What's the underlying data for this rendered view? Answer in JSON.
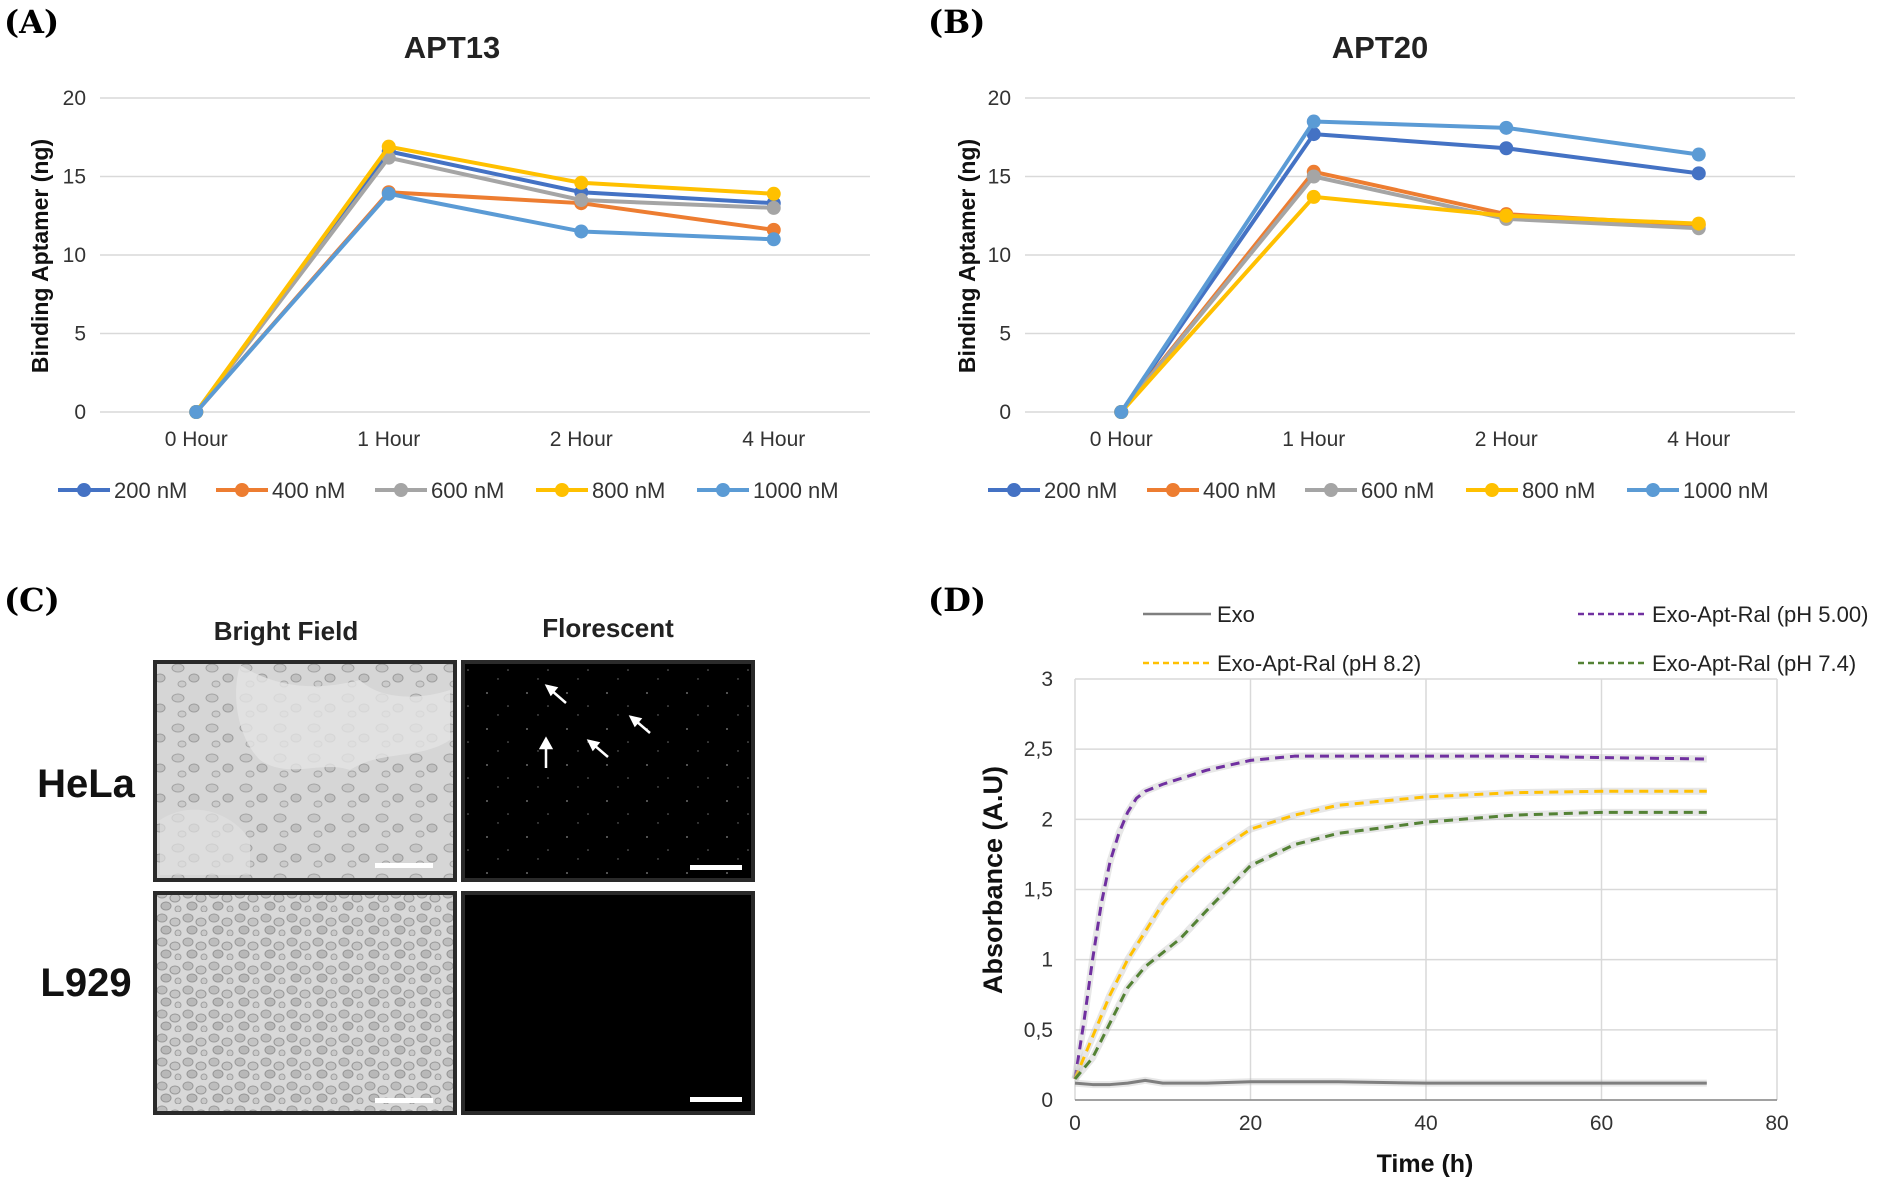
{
  "panel_labels": {
    "a": "(A)",
    "b": "(B)",
    "c": "(C)",
    "d": "(D)"
  },
  "colors": {
    "200 nM": "#4472c4",
    "400 nM": "#ed7d31",
    "600 nM": "#a5a5a5",
    "800 nM": "#ffc000",
    "1000 nM": "#5b9bd5",
    "exo": "#7f7f7f",
    "ph5": "#7030a0",
    "ph82": "#ffc000",
    "ph74": "#548235"
  },
  "chart_data": [
    {
      "id": "a",
      "type": "line",
      "title": "APT13",
      "xlabel": "",
      "ylabel": "Binding Aptamer (ng)",
      "categories": [
        "0 Hour",
        "1 Hour",
        "2 Hour",
        "4 Hour"
      ],
      "ylim": [
        0,
        20
      ],
      "yticks": [
        0,
        5,
        10,
        15,
        20
      ],
      "grid": true,
      "legend": "bottom",
      "series": [
        {
          "name": "200 nM",
          "values": [
            0,
            16.6,
            14.0,
            13.3
          ]
        },
        {
          "name": "400 nM",
          "values": [
            0,
            14.0,
            13.3,
            11.6
          ]
        },
        {
          "name": "600 nM",
          "values": [
            0,
            16.2,
            13.5,
            13.0
          ]
        },
        {
          "name": "800 nM",
          "values": [
            0,
            16.9,
            14.6,
            13.9
          ]
        },
        {
          "name": "1000 nM",
          "values": [
            0,
            13.9,
            11.5,
            11.0
          ]
        }
      ]
    },
    {
      "id": "b",
      "type": "line",
      "title": "APT20",
      "xlabel": "",
      "ylabel": "Binding Aptamer (ng)",
      "categories": [
        "0 Hour",
        "1 Hour",
        "2 Hour",
        "4 Hour"
      ],
      "ylim": [
        0,
        20
      ],
      "yticks": [
        0,
        5,
        10,
        15,
        20
      ],
      "grid": true,
      "legend": "bottom",
      "series": [
        {
          "name": "200 nM",
          "values": [
            0,
            17.7,
            16.8,
            15.2
          ]
        },
        {
          "name": "400 nM",
          "values": [
            0,
            15.3,
            12.6,
            11.9
          ]
        },
        {
          "name": "600 nM",
          "values": [
            0,
            15.0,
            12.3,
            11.7
          ]
        },
        {
          "name": "800 nM",
          "values": [
            0,
            13.7,
            12.5,
            12.0
          ]
        },
        {
          "name": "1000 nM",
          "values": [
            0,
            18.5,
            18.1,
            16.4
          ]
        }
      ]
    },
    {
      "id": "d",
      "type": "line",
      "title": "",
      "xlabel": "Time (h)",
      "ylabel": "Absorbance  (A.U)",
      "xlim": [
        0,
        80
      ],
      "xticks": [
        0,
        20,
        40,
        60,
        80
      ],
      "ylim": [
        0,
        3
      ],
      "yticks": [
        "0",
        "0,5",
        "1",
        "1,5",
        "2",
        "2,5",
        "3"
      ],
      "grid": true,
      "legend": "top",
      "series": [
        {
          "name": "Exo",
          "style": "solid",
          "x": [
            0,
            2,
            4,
            6,
            8,
            10,
            15,
            20,
            25,
            30,
            40,
            50,
            60,
            72
          ],
          "y": [
            0.12,
            0.11,
            0.11,
            0.12,
            0.14,
            0.12,
            0.12,
            0.13,
            0.13,
            0.13,
            0.12,
            0.12,
            0.12,
            0.12
          ]
        },
        {
          "name": "Exo-Apt-Ral (pH 5.00)",
          "style": "dashed",
          "x": [
            0,
            1,
            2,
            3,
            4,
            5,
            6,
            7,
            8,
            10,
            15,
            20,
            25,
            30,
            40,
            50,
            60,
            72
          ],
          "y": [
            0.15,
            0.55,
            1.0,
            1.4,
            1.7,
            1.9,
            2.05,
            2.15,
            2.2,
            2.25,
            2.35,
            2.42,
            2.45,
            2.45,
            2.45,
            2.45,
            2.44,
            2.43
          ]
        },
        {
          "name": "Exo-Apt-Ral (pH 8.2)",
          "style": "dashed",
          "x": [
            0,
            2,
            4,
            6,
            8,
            10,
            12,
            15,
            20,
            25,
            30,
            40,
            50,
            60,
            72
          ],
          "y": [
            0.15,
            0.45,
            0.75,
            1.0,
            1.2,
            1.4,
            1.55,
            1.72,
            1.93,
            2.03,
            2.1,
            2.16,
            2.19,
            2.2,
            2.2
          ]
        },
        {
          "name": "Exo-Apt-Ral (pH 7.4)",
          "style": "dashed",
          "x": [
            0,
            2,
            4,
            6,
            8,
            10,
            12,
            15,
            20,
            25,
            30,
            40,
            50,
            60,
            72
          ],
          "y": [
            0.15,
            0.3,
            0.55,
            0.8,
            0.95,
            1.05,
            1.15,
            1.35,
            1.67,
            1.82,
            1.9,
            1.98,
            2.03,
            2.05,
            2.05
          ]
        }
      ]
    }
  ],
  "panel_c": {
    "col_headers": [
      "Bright Field",
      "Florescent"
    ],
    "row_headers": [
      "HeLa",
      "L929"
    ]
  }
}
